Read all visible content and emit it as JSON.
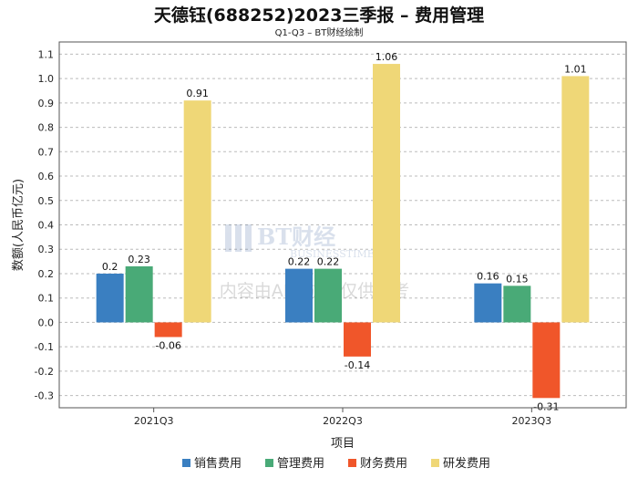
{
  "chart_data": {
    "type": "bar",
    "title": "天德钰(688252)2023三季报 – 费用管理",
    "subtitle": "Q1-Q3 – BT财经绘制",
    "xlabel": "项目",
    "ylabel": "数额(人民币亿元)",
    "categories": [
      "2021Q3",
      "2022Q3",
      "2023Q3"
    ],
    "series": [
      {
        "name": "销售费用",
        "values": [
          0.2,
          0.22,
          0.16
        ],
        "color": "#3a7fc1"
      },
      {
        "name": "管理费用",
        "values": [
          0.23,
          0.22,
          0.15
        ],
        "color": "#49aa77"
      },
      {
        "name": "财务费用",
        "values": [
          -0.06,
          -0.14,
          -0.31
        ],
        "color": "#f0562a"
      },
      {
        "name": "研发费用",
        "values": [
          0.91,
          1.06,
          1.01
        ],
        "color": "#efd777"
      }
    ],
    "ylim": [
      -0.35,
      1.15
    ],
    "yticks": [
      -0.3,
      -0.2,
      -0.1,
      0.0,
      0.1,
      0.2,
      0.3,
      0.4,
      0.5,
      0.6,
      0.7,
      0.8,
      0.9,
      1.0,
      1.1
    ],
    "grid": true,
    "legend": "bottom"
  },
  "watermark": {
    "brand": "BT财经",
    "brand_en": "BUSINESSTIMES",
    "note": "内容由AI生成，仅供参考"
  }
}
